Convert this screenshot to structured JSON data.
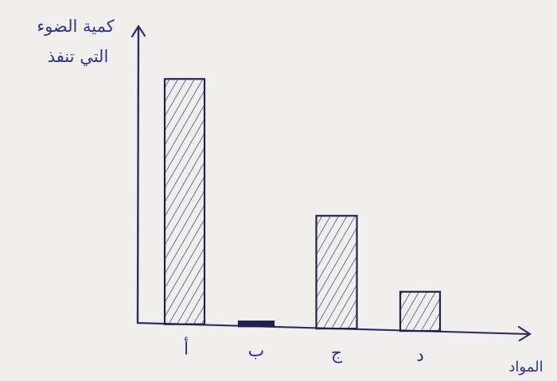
{
  "chart_data": {
    "type": "bar",
    "categories": [
      "أ",
      "ب",
      "ج",
      "د"
    ],
    "values": [
      100,
      2,
      46,
      16
    ],
    "ylabel_line1": "كمية الضوء",
    "ylabel_line2": "التي تنفذ",
    "xlabel": "المواد",
    "ylim": [
      0,
      120
    ],
    "grid": false,
    "legend": "none",
    "bar_fill": "#f2eeea",
    "bar_stroke": "#1e2250",
    "hatch_color": "#4a5078",
    "axis_color": "#2a2f6a",
    "text_color": "#2b3590"
  }
}
